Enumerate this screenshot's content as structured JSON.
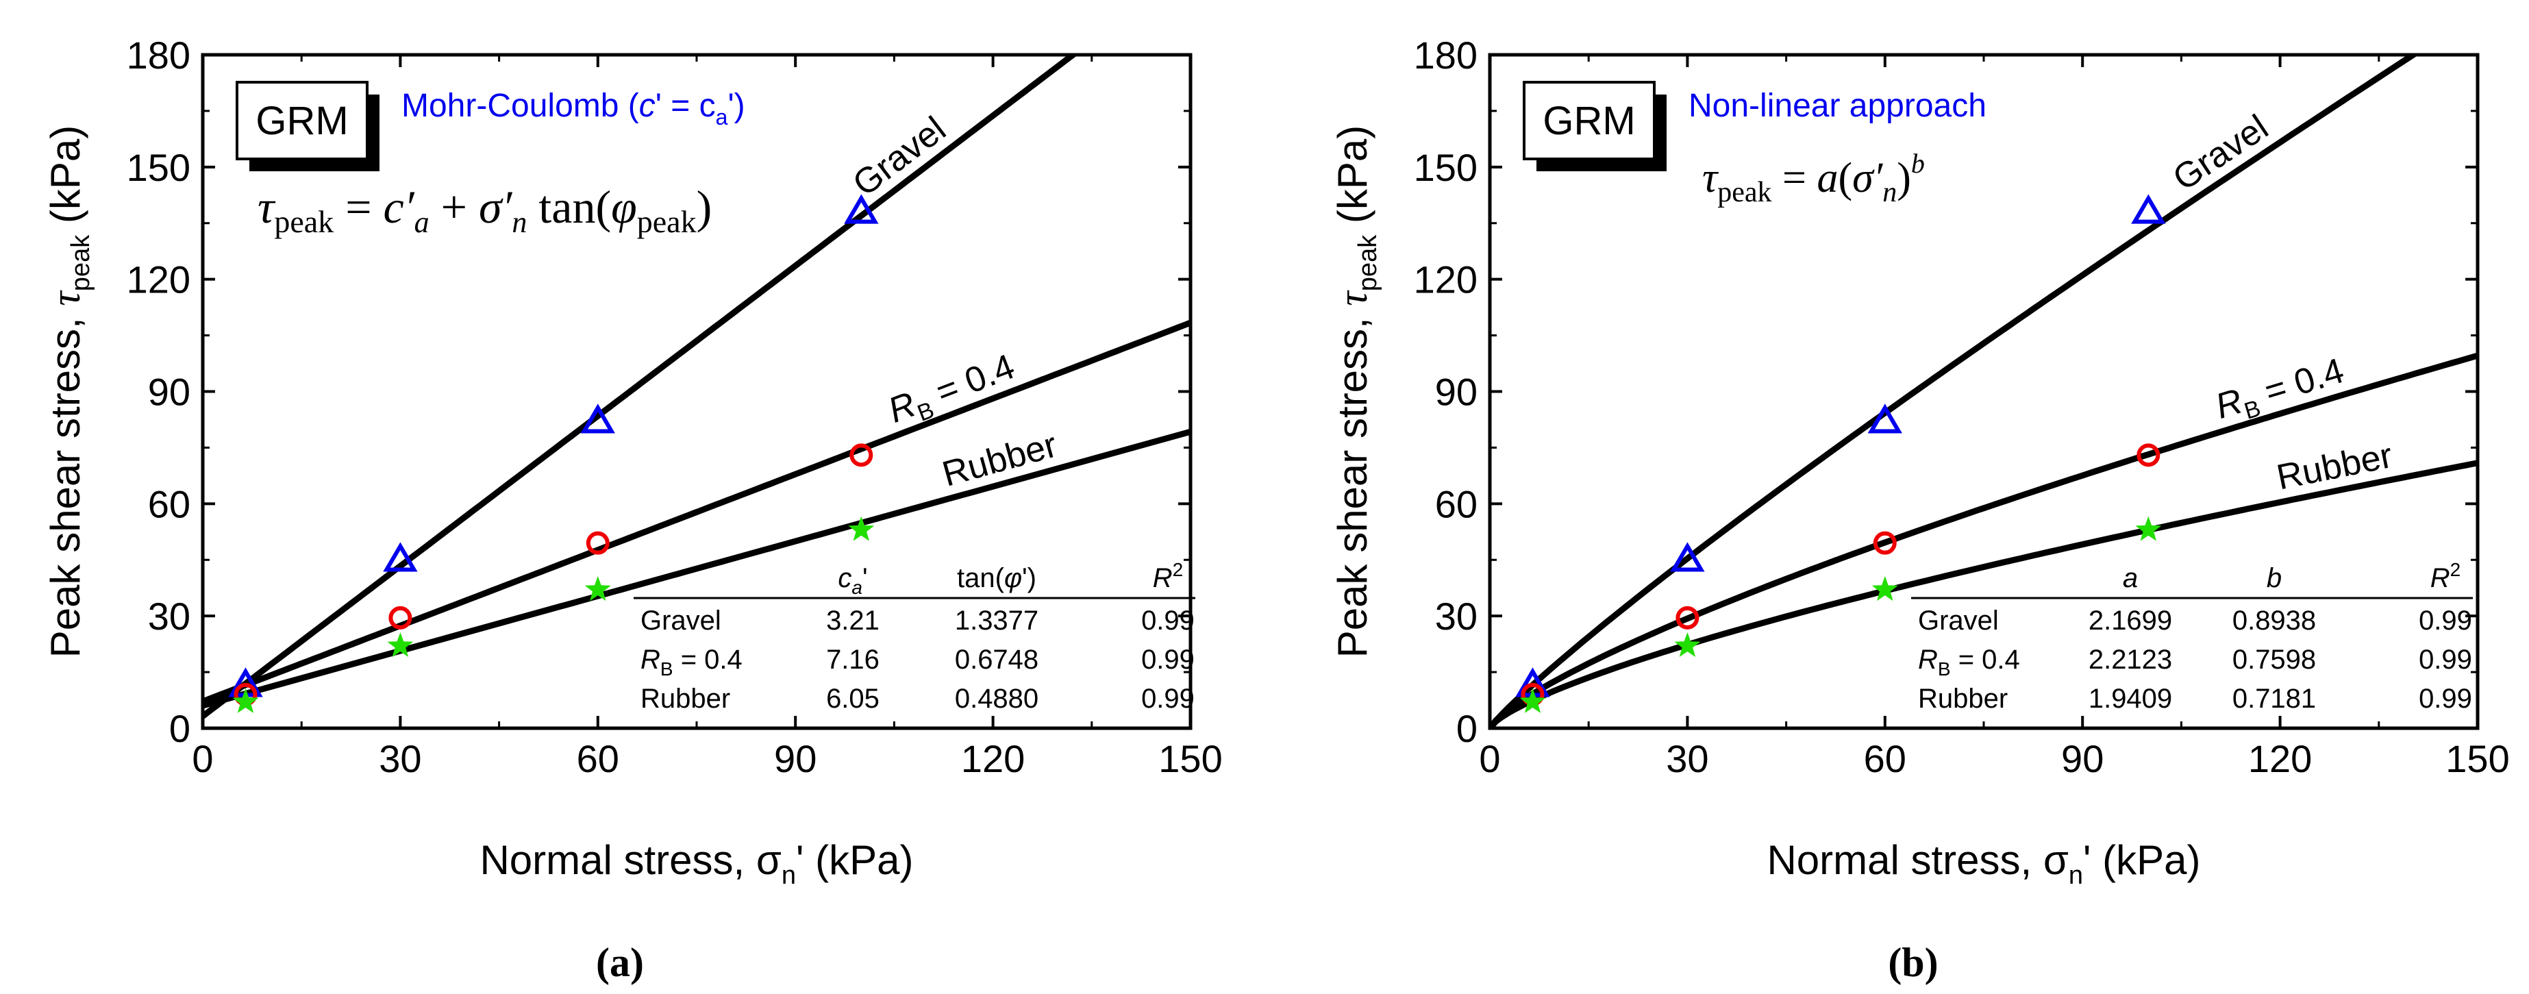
{
  "chart_data": [
    {
      "type": "scatter",
      "panel_label": "(a)",
      "badge": "GRM",
      "title": "Mohr-Coulomb (c' = ca')",
      "title_parts": {
        "prefix": "Mohr-Coulomb (",
        "c": "c",
        "mid": "' = c",
        "sub": "a",
        "suffix": "')"
      },
      "equation": "τpeak = c′a + σ′n tan(φpeak)",
      "xlabel": "Normal stress, σn' (kPa)",
      "ylabel": "Peak shear stress, τpeak (kPa)",
      "xlim": [
        0,
        150
      ],
      "ylim": [
        0,
        180
      ],
      "xticks": [
        "0",
        "30",
        "60",
        "90",
        "120",
        "150"
      ],
      "yticks": [
        "0",
        "30",
        "60",
        "90",
        "120",
        "150",
        "180"
      ],
      "fit": "linear",
      "series": [
        {
          "name": "Gravel",
          "label": "Gravel",
          "marker": "triangle",
          "color": "#0000ee",
          "x": [
            6.5,
            30,
            60,
            100
          ],
          "y": [
            11.5,
            45,
            82,
            138
          ],
          "params": [
            3.21,
            1.3377
          ]
        },
        {
          "name": "RB = 0.4",
          "label": "RB = 0.4",
          "marker": "circle",
          "color": "#ee0000",
          "x": [
            6.5,
            30,
            60,
            100
          ],
          "y": [
            9,
            29.5,
            49.5,
            73
          ],
          "params": [
            7.16,
            0.6748
          ]
        },
        {
          "name": "Rubber",
          "label": "Rubber",
          "marker": "star",
          "color": "#22dd00",
          "x": [
            6.5,
            30,
            60,
            100
          ],
          "y": [
            7,
            22,
            37,
            53
          ],
          "params": [
            6.05,
            0.488
          ]
        }
      ],
      "table": {
        "headers": [
          "",
          "ca'",
          "tan(φ')",
          "R2"
        ],
        "rows": [
          [
            "Gravel",
            "3.21",
            "1.3377",
            "0.99"
          ],
          [
            "RB = 0.4",
            "7.16",
            "0.6748",
            "0.99"
          ],
          [
            "Rubber",
            "6.05",
            "0.4880",
            "0.99"
          ]
        ]
      }
    },
    {
      "type": "scatter",
      "panel_label": "(b)",
      "badge": "GRM",
      "title": "Non-linear approach",
      "equation": "τpeak = a(σ′n)^b",
      "xlabel": "Normal stress, σn' (kPa)",
      "ylabel": "Peak shear stress, τpeak (kPa)",
      "xlim": [
        0,
        150
      ],
      "ylim": [
        0,
        180
      ],
      "xticks": [
        "0",
        "30",
        "60",
        "90",
        "120",
        "150"
      ],
      "yticks": [
        "0",
        "30",
        "60",
        "90",
        "120",
        "150",
        "180"
      ],
      "fit": "power",
      "series": [
        {
          "name": "Gravel",
          "label": "Gravel",
          "marker": "triangle",
          "color": "#0000ee",
          "x": [
            6.5,
            30,
            60,
            100
          ],
          "y": [
            11.5,
            45,
            82,
            138
          ],
          "params": [
            2.1699,
            0.8938
          ]
        },
        {
          "name": "RB = 0.4",
          "label": "RB = 0.4",
          "marker": "circle",
          "color": "#ee0000",
          "x": [
            6.5,
            30,
            60,
            100
          ],
          "y": [
            9,
            29.5,
            49.5,
            73
          ],
          "params": [
            2.2123,
            0.7598
          ]
        },
        {
          "name": "Rubber",
          "label": "Rubber",
          "marker": "star",
          "color": "#22dd00",
          "x": [
            6.5,
            30,
            60,
            100
          ],
          "y": [
            7,
            22,
            37,
            53
          ],
          "params": [
            1.9409,
            0.7181
          ]
        }
      ],
      "table": {
        "headers": [
          "",
          "a",
          "b",
          "R2"
        ],
        "rows": [
          [
            "Gravel",
            "2.1699",
            "0.8938",
            "0.99"
          ],
          [
            "RB = 0.4",
            "2.2123",
            "0.7598",
            "0.99"
          ],
          [
            "Rubber",
            "1.9409",
            "0.7181",
            "0.99"
          ]
        ]
      }
    }
  ]
}
